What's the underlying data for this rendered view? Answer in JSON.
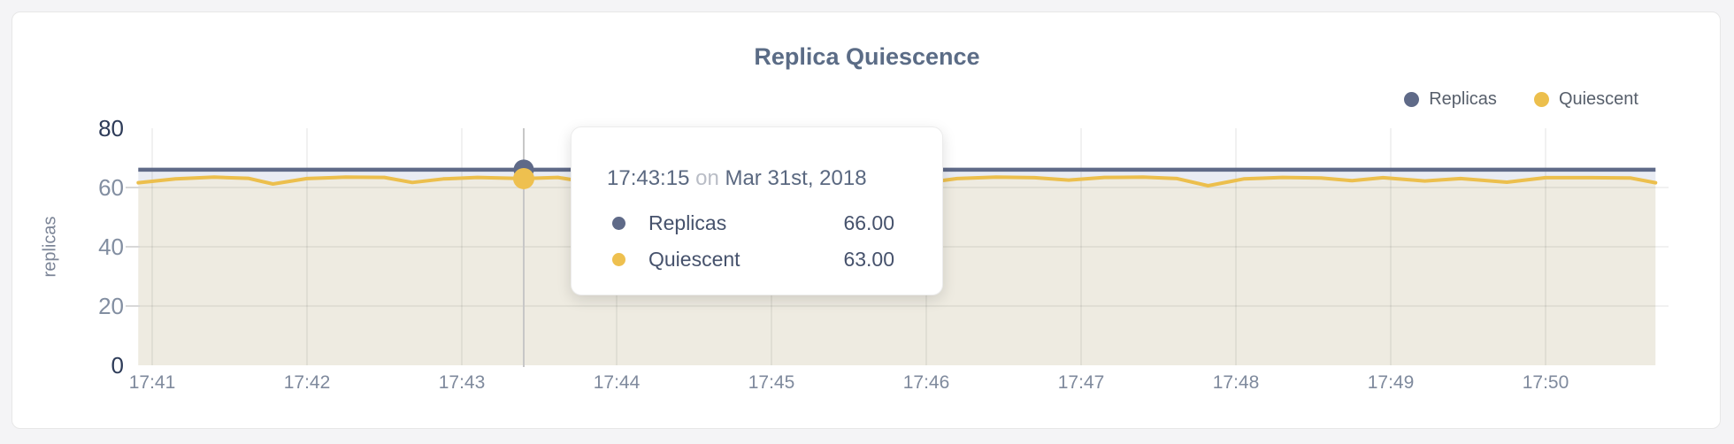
{
  "page": {
    "background": "#f4f4f6"
  },
  "panel": {
    "background": "#ffffff",
    "border_color": "#e7e7e7"
  },
  "chart_data": {
    "type": "line",
    "title": "Replica Quiescence",
    "title_color": "#5b6c86",
    "ylabel": "replicas",
    "xlabel": "",
    "ylim": [
      0,
      80
    ],
    "y_ticks": [
      0,
      20,
      40,
      60,
      80
    ],
    "x_ticks": [
      "17:41",
      "17:42",
      "17:43",
      "17:44",
      "17:45",
      "17:46",
      "17:47",
      "17:48",
      "17:49",
      "17:50"
    ],
    "grid": true,
    "legend_position": "top-right",
    "series": [
      {
        "name": "Replicas",
        "color": "#5f6a88",
        "fill": "#e9ecf3",
        "points": [
          [
            -0.09,
            66
          ],
          [
            9.71,
            66
          ]
        ]
      },
      {
        "name": "Quiescent",
        "color": "#ecbf4d",
        "fill": "#eeebe1",
        "points": [
          [
            -0.09,
            61.6
          ],
          [
            0.15,
            62.9
          ],
          [
            0.4,
            63.5
          ],
          [
            0.62,
            63.1
          ],
          [
            0.78,
            61.2
          ],
          [
            1.0,
            63.0
          ],
          [
            1.25,
            63.5
          ],
          [
            1.5,
            63.4
          ],
          [
            1.68,
            61.7
          ],
          [
            1.88,
            62.9
          ],
          [
            2.1,
            63.4
          ],
          [
            2.4,
            63.0
          ],
          [
            2.62,
            63.4
          ],
          [
            2.85,
            61.5
          ],
          [
            3.1,
            62.9
          ],
          [
            3.35,
            63.5
          ],
          [
            3.6,
            63.3
          ],
          [
            3.82,
            62.2
          ],
          [
            4.05,
            63.3
          ],
          [
            4.3,
            63.5
          ],
          [
            4.55,
            63.1
          ],
          [
            4.75,
            61.9
          ],
          [
            4.95,
            61.3
          ],
          [
            5.2,
            63.0
          ],
          [
            5.45,
            63.5
          ],
          [
            5.7,
            63.3
          ],
          [
            5.92,
            62.5
          ],
          [
            6.15,
            63.4
          ],
          [
            6.4,
            63.5
          ],
          [
            6.62,
            63.0
          ],
          [
            6.82,
            60.6
          ],
          [
            7.05,
            62.9
          ],
          [
            7.3,
            63.4
          ],
          [
            7.55,
            63.2
          ],
          [
            7.75,
            62.3
          ],
          [
            7.95,
            63.3
          ],
          [
            8.22,
            62.2
          ],
          [
            8.45,
            63.0
          ],
          [
            8.75,
            61.8
          ],
          [
            9.0,
            63.3
          ],
          [
            9.3,
            63.3
          ],
          [
            9.55,
            63.2
          ],
          [
            9.71,
            61.6
          ]
        ]
      }
    ],
    "hover": {
      "time": "17:43:15",
      "on_word": "on",
      "date": "Mar 31st, 2018",
      "position_min": 2.4,
      "crosshair_color": "#c7c7c7",
      "rows": [
        {
          "name": "Replicas",
          "value": "66.00",
          "color": "#5f6a88"
        },
        {
          "name": "Quiescent",
          "value": "63.00",
          "color": "#eec04f"
        }
      ]
    }
  }
}
